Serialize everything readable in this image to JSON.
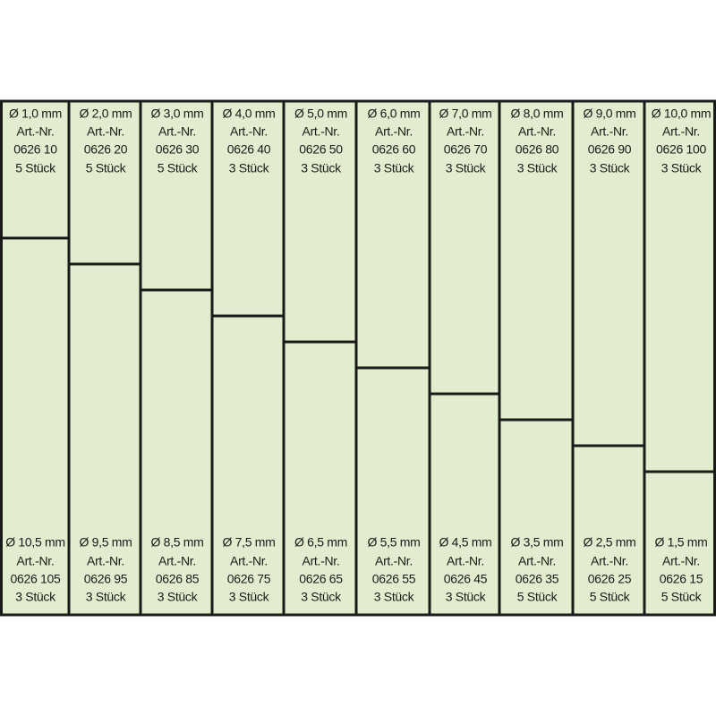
{
  "columns": [
    {
      "top": [
        "Ø 1,0 mm",
        "Art.-Nr.",
        "0626 10",
        "5 Stück"
      ],
      "bottom": [
        "Ø 10,5 mm",
        "Art.-Nr.",
        "0626 105",
        "3 Stück"
      ]
    },
    {
      "top": [
        "Ø 2,0 mm",
        "Art.-Nr.",
        "0626 20",
        "5 Stück"
      ],
      "bottom": [
        "Ø 9,5 mm",
        "Art.-Nr.",
        "0626 95",
        "3 Stück"
      ]
    },
    {
      "top": [
        "Ø 3,0 mm",
        "Art.-Nr.",
        "0626 30",
        "5 Stück"
      ],
      "bottom": [
        "Ø 8,5 mm",
        "Art.-Nr.",
        "0626 85",
        "3 Stück"
      ]
    },
    {
      "top": [
        "Ø 4,0 mm",
        "Art.-Nr.",
        "0626 40",
        "3 Stück"
      ],
      "bottom": [
        "Ø 7,5 mm",
        "Art.-Nr.",
        "0626 75",
        "3 Stück"
      ]
    },
    {
      "top": [
        "Ø 5,0 mm",
        "Art.-Nr.",
        "0626 50",
        "3 Stück"
      ],
      "bottom": [
        "Ø 6,5 mm",
        "Art.-Nr.",
        "0626 65",
        "3 Stück"
      ]
    },
    {
      "top": [
        "Ø 6,0 mm",
        "Art.-Nr.",
        "0626 60",
        "3 Stück"
      ],
      "bottom": [
        "Ø 5,5 mm",
        "Art.-Nr.",
        "0626 55",
        "3 Stück"
      ]
    },
    {
      "top": [
        "Ø 7,0 mm",
        "Art.-Nr.",
        "0626 70",
        "3 Stück"
      ],
      "bottom": [
        "Ø 4,5 mm",
        "Art.-Nr.",
        "0626 45",
        "3 Stück"
      ]
    },
    {
      "top": [
        "Ø 8,0 mm",
        "Art.-Nr.",
        "0626 80",
        "3 Stück"
      ],
      "bottom": [
        "Ø 3,5 mm",
        "Art.-Nr.",
        "0626 35",
        "5 Stück"
      ]
    },
    {
      "top": [
        "Ø 9,0 mm",
        "Art.-Nr.",
        "0626 90",
        "3 Stück"
      ],
      "bottom": [
        "Ø 2,5 mm",
        "Art.-Nr.",
        "0626 25",
        "5 Stück"
      ]
    },
    {
      "top": [
        "Ø 10,0 mm",
        "Art.-Nr.",
        "0626 100",
        "3 Stück"
      ],
      "bottom": [
        "Ø 1,5 mm",
        "Art.-Nr.",
        "0626 15",
        "5 Stück"
      ]
    }
  ]
}
